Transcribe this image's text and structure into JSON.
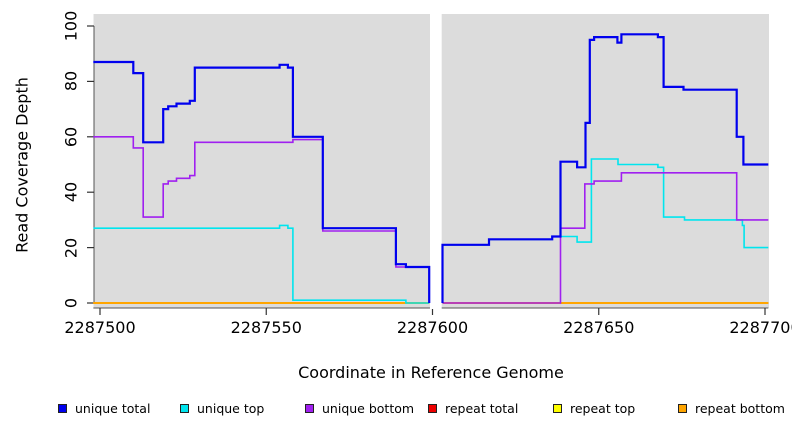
{
  "figure": {
    "ylabel": "Read Coverage Depth",
    "xlabel": "Coordinate in Reference Genome",
    "background": "#ffffff",
    "panel_background": "#dcdcdc",
    "gap_band_color": "#ffffff",
    "tick_color": "#333333"
  },
  "chart_data": {
    "type": "line",
    "subtype": "step",
    "title": "",
    "xlabel": "Coordinate in Reference Genome",
    "ylabel": "Read Coverage Depth",
    "xlim": [
      2287498,
      2287701
    ],
    "ylim": [
      0,
      100
    ],
    "x_ticks": [
      2287500,
      2287550,
      2287600,
      2287650,
      2287700
    ],
    "y_ticks": [
      0,
      20,
      40,
      60,
      80,
      100
    ],
    "grid": false,
    "legend_position": "bottom",
    "gap": {
      "start": 2287599,
      "end": 2287603
    },
    "draw_order": [
      3,
      4,
      5,
      1,
      2,
      0
    ],
    "series": [
      {
        "name": "unique total",
        "color": "#0000EE",
        "width": 2.2,
        "segments": [
          {
            "steps": [
              [
                2287498,
                87
              ],
              [
                2287510,
                83
              ],
              [
                2287513,
                58
              ],
              [
                2287519,
                70
              ],
              [
                2287520.5,
                71
              ],
              [
                2287523,
                72
              ],
              [
                2287527,
                73
              ],
              [
                2287528.5,
                85
              ],
              [
                2287554,
                86
              ],
              [
                2287556.5,
                85
              ],
              [
                2287558,
                60
              ],
              [
                2287567,
                27
              ],
              [
                2287589,
                14
              ],
              [
                2287592,
                13
              ]
            ],
            "end": 2287599,
            "drop_to": 0
          },
          {
            "rise_from": 0,
            "steps": [
              [
                2287603,
                21
              ],
              [
                2287617,
                23
              ],
              [
                2287636,
                24
              ],
              [
                2287638.5,
                51
              ],
              [
                2287643.5,
                49
              ],
              [
                2287646,
                65
              ],
              [
                2287647.3,
                95
              ],
              [
                2287648.6,
                96
              ],
              [
                2287655.6,
                94
              ],
              [
                2287656.8,
                97
              ],
              [
                2287667.8,
                96
              ],
              [
                2287669.5,
                78
              ],
              [
                2287675.5,
                77
              ],
              [
                2287691.5,
                60
              ],
              [
                2287693.5,
                50
              ]
            ],
            "end": 2287701
          }
        ]
      },
      {
        "name": "unique top",
        "color": "#00E5EE",
        "width": 1.6,
        "segments": [
          {
            "steps": [
              [
                2287498,
                27
              ],
              [
                2287554,
                28
              ],
              [
                2287556.5,
                27
              ],
              [
                2287558,
                1
              ],
              [
                2287592,
                0
              ]
            ],
            "end": 2287599
          },
          {
            "rise_from": 0,
            "steps": [
              [
                2287603,
                21
              ],
              [
                2287617,
                23
              ],
              [
                2287636,
                24
              ],
              [
                2287643.5,
                22
              ],
              [
                2287647.8,
                52
              ],
              [
                2287655.8,
                50
              ],
              [
                2287667.8,
                49
              ],
              [
                2287669.5,
                31
              ],
              [
                2287675.8,
                30
              ],
              [
                2287693.2,
                28
              ],
              [
                2287693.7,
                20
              ]
            ],
            "end": 2287701
          }
        ]
      },
      {
        "name": "unique bottom",
        "color": "#A020F0",
        "width": 1.6,
        "segments": [
          {
            "steps": [
              [
                2287498,
                60
              ],
              [
                2287510,
                56
              ],
              [
                2287513,
                31
              ],
              [
                2287519,
                43
              ],
              [
                2287520.5,
                44
              ],
              [
                2287523,
                45
              ],
              [
                2287527,
                46
              ],
              [
                2287528.5,
                58
              ],
              [
                2287558,
                59
              ],
              [
                2287567,
                26
              ],
              [
                2287589,
                13
              ]
            ],
            "end": 2287599,
            "drop_to": 0
          },
          {
            "steps": [
              [
                2287603,
                0
              ],
              [
                2287638.5,
                27
              ],
              [
                2287645.8,
                43
              ],
              [
                2287648.6,
                44
              ],
              [
                2287656.8,
                47
              ],
              [
                2287691.5,
                30
              ]
            ],
            "end": 2287701
          }
        ]
      },
      {
        "name": "repeat total",
        "color": "#EE0000",
        "width": 1.6,
        "segments": [
          {
            "steps": [
              [
                2287498,
                0
              ]
            ],
            "end": 2287599
          },
          {
            "steps": [
              [
                2287603,
                0
              ]
            ],
            "end": 2287701
          }
        ]
      },
      {
        "name": "repeat top",
        "color": "#FFFF00",
        "width": 1.6,
        "segments": [
          {
            "steps": [
              [
                2287498,
                0
              ]
            ],
            "end": 2287599
          },
          {
            "steps": [
              [
                2287603,
                0
              ]
            ],
            "end": 2287701
          }
        ]
      },
      {
        "name": "repeat bottom",
        "color": "#FFA500",
        "width": 2.0,
        "segments": [
          {
            "steps": [
              [
                2287498,
                0
              ]
            ],
            "end": 2287599
          },
          {
            "steps": [
              [
                2287603,
                0
              ]
            ],
            "end": 2287701
          }
        ]
      }
    ],
    "legend_item_x": [
      58,
      180,
      305,
      428,
      553,
      678
    ]
  }
}
